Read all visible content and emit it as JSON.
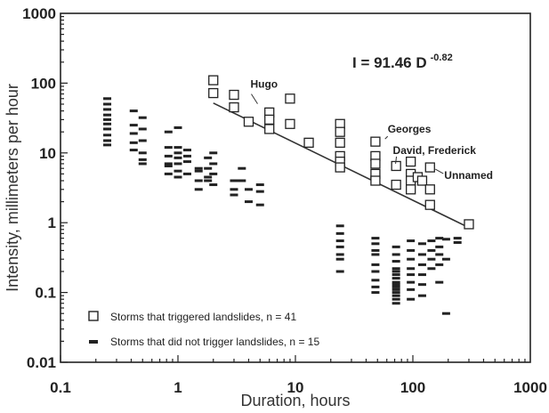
{
  "chart_data": {
    "type": "scatter",
    "x_scale": "log",
    "y_scale": "log",
    "xlim": [
      0.1,
      1000
    ],
    "ylim": [
      0.01,
      1000
    ],
    "xlabel": "Duration, hours",
    "ylabel": "Intensity, millimeters per hour",
    "x_ticks": [
      "0.1",
      "1",
      "10",
      "100",
      "1000"
    ],
    "y_ticks": [
      "0.01",
      "0.1",
      "1",
      "10",
      "100",
      "1000"
    ],
    "grid": false,
    "legend_position": "bottom-left",
    "equation": {
      "text": "I = 91.46 D",
      "exponent": "-0.82",
      "coefficient": 91.46,
      "power": -0.82,
      "x_range": [
        2,
        300
      ]
    },
    "annotations": [
      {
        "text": "Hugo",
        "x": 4.0,
        "y": 45
      },
      {
        "text": "Georges",
        "x": 55,
        "y": 14.5
      },
      {
        "text": "David, Frederick",
        "x": 70,
        "y": 6.8
      },
      {
        "text": "Unnamed",
        "x": 140,
        "y": 6.2
      }
    ],
    "series": [
      {
        "name": "Storms that triggered landslides, n = 41",
        "marker": "open-square",
        "points": [
          [
            2,
            110
          ],
          [
            2,
            72
          ],
          [
            3,
            68
          ],
          [
            3,
            45
          ],
          [
            4,
            28
          ],
          [
            6,
            38
          ],
          [
            6,
            30
          ],
          [
            6,
            22
          ],
          [
            9,
            60
          ],
          [
            9,
            26
          ],
          [
            13,
            14
          ],
          [
            24,
            26
          ],
          [
            24,
            20
          ],
          [
            24,
            14
          ],
          [
            24,
            9
          ],
          [
            24,
            7.5
          ],
          [
            24,
            6.2
          ],
          [
            48,
            14.5
          ],
          [
            48,
            9
          ],
          [
            48,
            7
          ],
          [
            48,
            5
          ],
          [
            48,
            4
          ],
          [
            72,
            6.5
          ],
          [
            72,
            3.5
          ],
          [
            96,
            7.5
          ],
          [
            96,
            5
          ],
          [
            96,
            4
          ],
          [
            96,
            3
          ],
          [
            110,
            4.5
          ],
          [
            120,
            4
          ],
          [
            140,
            6.2
          ],
          [
            140,
            3
          ],
          [
            140,
            1.8
          ],
          [
            300,
            0.95
          ]
        ]
      },
      {
        "name": "Storms that did not trigger landslides, n = 15",
        "marker": "dash",
        "points": [
          [
            0.25,
            60
          ],
          [
            0.25,
            50
          ],
          [
            0.25,
            42
          ],
          [
            0.25,
            35
          ],
          [
            0.25,
            30
          ],
          [
            0.25,
            26
          ],
          [
            0.25,
            22
          ],
          [
            0.25,
            18
          ],
          [
            0.25,
            15
          ],
          [
            0.25,
            13
          ],
          [
            0.42,
            40
          ],
          [
            0.42,
            25
          ],
          [
            0.42,
            19
          ],
          [
            0.42,
            14
          ],
          [
            0.42,
            11
          ],
          [
            0.5,
            32
          ],
          [
            0.5,
            22
          ],
          [
            0.5,
            15
          ],
          [
            0.5,
            10
          ],
          [
            0.5,
            8
          ],
          [
            0.5,
            7
          ],
          [
            0.83,
            20
          ],
          [
            0.83,
            12
          ],
          [
            0.83,
            9
          ],
          [
            0.83,
            7
          ],
          [
            0.83,
            6.5
          ],
          [
            0.83,
            5
          ],
          [
            1,
            23
          ],
          [
            1,
            12
          ],
          [
            1,
            10
          ],
          [
            1,
            8.5
          ],
          [
            1,
            7
          ],
          [
            1,
            5.5
          ],
          [
            1,
            4.5
          ],
          [
            1.2,
            11
          ],
          [
            1.2,
            9
          ],
          [
            1.2,
            7.5
          ],
          [
            1.2,
            5
          ],
          [
            1.5,
            6
          ],
          [
            1.5,
            5.5
          ],
          [
            1.5,
            4
          ],
          [
            1.5,
            3
          ],
          [
            1.8,
            8.5
          ],
          [
            1.8,
            6
          ],
          [
            1.8,
            4.5
          ],
          [
            1.8,
            4
          ],
          [
            2,
            10
          ],
          [
            2,
            7
          ],
          [
            2,
            5
          ],
          [
            2,
            3.5
          ],
          [
            3,
            4
          ],
          [
            3,
            3
          ],
          [
            3,
            2.5
          ],
          [
            3.5,
            6
          ],
          [
            3.5,
            4
          ],
          [
            4,
            3
          ],
          [
            4,
            2
          ],
          [
            5,
            3.5
          ],
          [
            5,
            2.8
          ],
          [
            5,
            1.8
          ],
          [
            24,
            0.9
          ],
          [
            24,
            0.7
          ],
          [
            24,
            0.55
          ],
          [
            24,
            0.45
          ],
          [
            24,
            0.35
          ],
          [
            24,
            0.3
          ],
          [
            24,
            0.2
          ],
          [
            48,
            0.6
          ],
          [
            48,
            0.5
          ],
          [
            48,
            0.4
          ],
          [
            48,
            0.35
          ],
          [
            48,
            0.25
          ],
          [
            48,
            0.2
          ],
          [
            48,
            0.15
          ],
          [
            48,
            0.12
          ],
          [
            48,
            0.1
          ],
          [
            72,
            0.45
          ],
          [
            72,
            0.35
          ],
          [
            72,
            0.28
          ],
          [
            72,
            0.22
          ],
          [
            72,
            0.2
          ],
          [
            72,
            0.18
          ],
          [
            72,
            0.16
          ],
          [
            72,
            0.14
          ],
          [
            72,
            0.13
          ],
          [
            72,
            0.12
          ],
          [
            72,
            0.11
          ],
          [
            72,
            0.1
          ],
          [
            72,
            0.09
          ],
          [
            72,
            0.08
          ],
          [
            72,
            0.07
          ],
          [
            96,
            0.55
          ],
          [
            96,
            0.4
          ],
          [
            96,
            0.3
          ],
          [
            96,
            0.22
          ],
          [
            96,
            0.18
          ],
          [
            96,
            0.14
          ],
          [
            96,
            0.11
          ],
          [
            96,
            0.08
          ],
          [
            120,
            0.5
          ],
          [
            120,
            0.35
          ],
          [
            120,
            0.25
          ],
          [
            120,
            0.18
          ],
          [
            120,
            0.13
          ],
          [
            120,
            0.09
          ],
          [
            144,
            0.55
          ],
          [
            144,
            0.4
          ],
          [
            144,
            0.3
          ],
          [
            144,
            0.22
          ],
          [
            168,
            0.6
          ],
          [
            168,
            0.45
          ],
          [
            168,
            0.35
          ],
          [
            168,
            0.25
          ],
          [
            168,
            0.14
          ],
          [
            192,
            0.58
          ],
          [
            192,
            0.3
          ],
          [
            192,
            0.05
          ],
          [
            240,
            0.6
          ],
          [
            240,
            0.52
          ]
        ]
      }
    ]
  }
}
